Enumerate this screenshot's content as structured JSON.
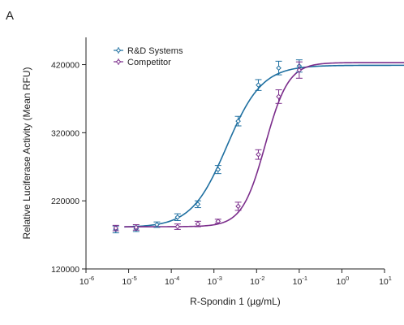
{
  "panel_label": "A",
  "chart_data": {
    "type": "scatter",
    "xscale": "log",
    "xlim": [
      1e-06,
      10
    ],
    "ylim": [
      120000,
      460000
    ],
    "x_ticks": [
      {
        "value": 1e-06,
        "base": "10",
        "exp": "-6"
      },
      {
        "value": 1e-05,
        "base": "10",
        "exp": "-5"
      },
      {
        "value": 0.0001,
        "base": "10",
        "exp": "-4"
      },
      {
        "value": 0.001,
        "base": "10",
        "exp": "-3"
      },
      {
        "value": 0.01,
        "base": "10",
        "exp": "-2"
      },
      {
        "value": 0.1,
        "base": "10",
        "exp": "-1"
      },
      {
        "value": 1,
        "base": "10",
        "exp": "0"
      },
      {
        "value": 10,
        "base": "10",
        "exp": "1"
      }
    ],
    "y_ticks": [
      {
        "value": 120000,
        "label": "120000"
      },
      {
        "value": 220000,
        "label": "220000"
      },
      {
        "value": 320000,
        "label": "320000"
      },
      {
        "value": 420000,
        "label": "420000"
      }
    ],
    "xlabel": "R-Spondin 1 (µg/mL)",
    "ylabel": "Relative Luciferase Activity (Mean RFU)",
    "legend_position": "top-left",
    "grid": false,
    "series": [
      {
        "name": "R&D Systems",
        "color": "#1e6fa0",
        "marker": "diamond",
        "points": [
          {
            "x": 5e-06,
            "y": 178000,
            "err": 5000
          },
          {
            "x": 1.5e-05,
            "y": 179000,
            "err": 4000
          },
          {
            "x": 4.6e-05,
            "y": 185000,
            "err": 4000
          },
          {
            "x": 0.00014,
            "y": 196000,
            "err": 5000
          },
          {
            "x": 0.00042,
            "y": 215000,
            "err": 5000
          },
          {
            "x": 0.00125,
            "y": 266000,
            "err": 6000
          },
          {
            "x": 0.0037,
            "y": 337000,
            "err": 7000
          },
          {
            "x": 0.011,
            "y": 390000,
            "err": 8000
          },
          {
            "x": 0.033,
            "y": 415000,
            "err": 10000
          },
          {
            "x": 0.1,
            "y": 418000,
            "err": 9000
          }
        ],
        "fit": {
          "bottom": 181000,
          "top": 419000,
          "ec50": 0.002,
          "hill": 1.05
        }
      },
      {
        "name": "Competitor",
        "color": "#7b2d8b",
        "marker": "diamond",
        "points": [
          {
            "x": 5e-06,
            "y": 180000,
            "err": 4000
          },
          {
            "x": 1.5e-05,
            "y": 181000,
            "err": 4000
          },
          {
            "x": 0.00014,
            "y": 182000,
            "err": 4000
          },
          {
            "x": 0.00042,
            "y": 186000,
            "err": 4000
          },
          {
            "x": 0.00125,
            "y": 190000,
            "err": 3000
          },
          {
            "x": 0.0037,
            "y": 212000,
            "err": 6000
          },
          {
            "x": 0.011,
            "y": 288000,
            "err": 7000
          },
          {
            "x": 0.033,
            "y": 373000,
            "err": 10000
          },
          {
            "x": 0.1,
            "y": 412000,
            "err": 12000
          }
        ],
        "fit": {
          "bottom": 182000,
          "top": 423000,
          "ec50": 0.016,
          "hill": 1.6
        }
      }
    ]
  }
}
